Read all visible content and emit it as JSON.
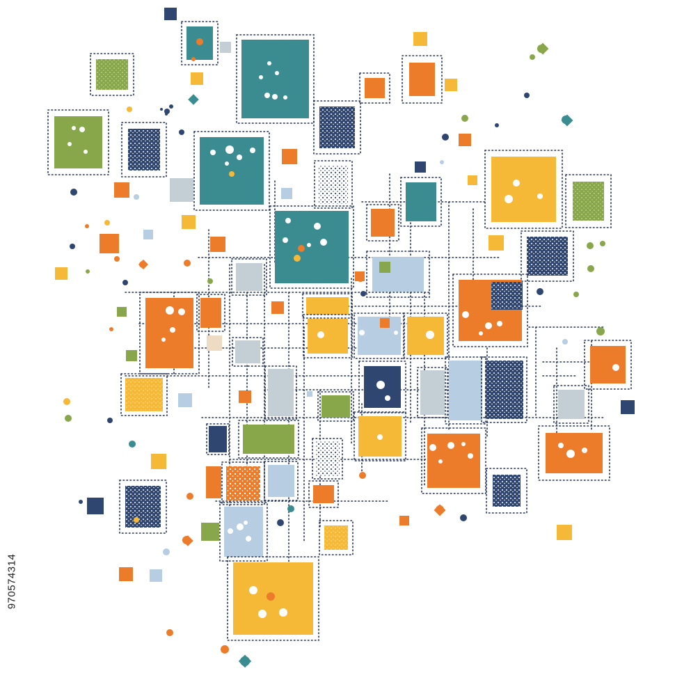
{
  "image": {
    "kind": "abstract geometric illustration",
    "stock_id": "970574314"
  },
  "palette": {
    "teal": "#3a8c90",
    "navy": "#2f4670",
    "orange": "#ec7b2a",
    "yellow": "#f5b937",
    "green": "#88a74a",
    "light_blue": "#b7cde1",
    "light_gray": "#c3cfd4",
    "beige": "#eddcc3",
    "frame_dots": "#1f2f55",
    "dot_fill": "#ffffff"
  },
  "icons": {
    "shapes": "square-tile-icon",
    "dots": "confetti-dot-icon",
    "frames": "dashed-frame-icon"
  }
}
